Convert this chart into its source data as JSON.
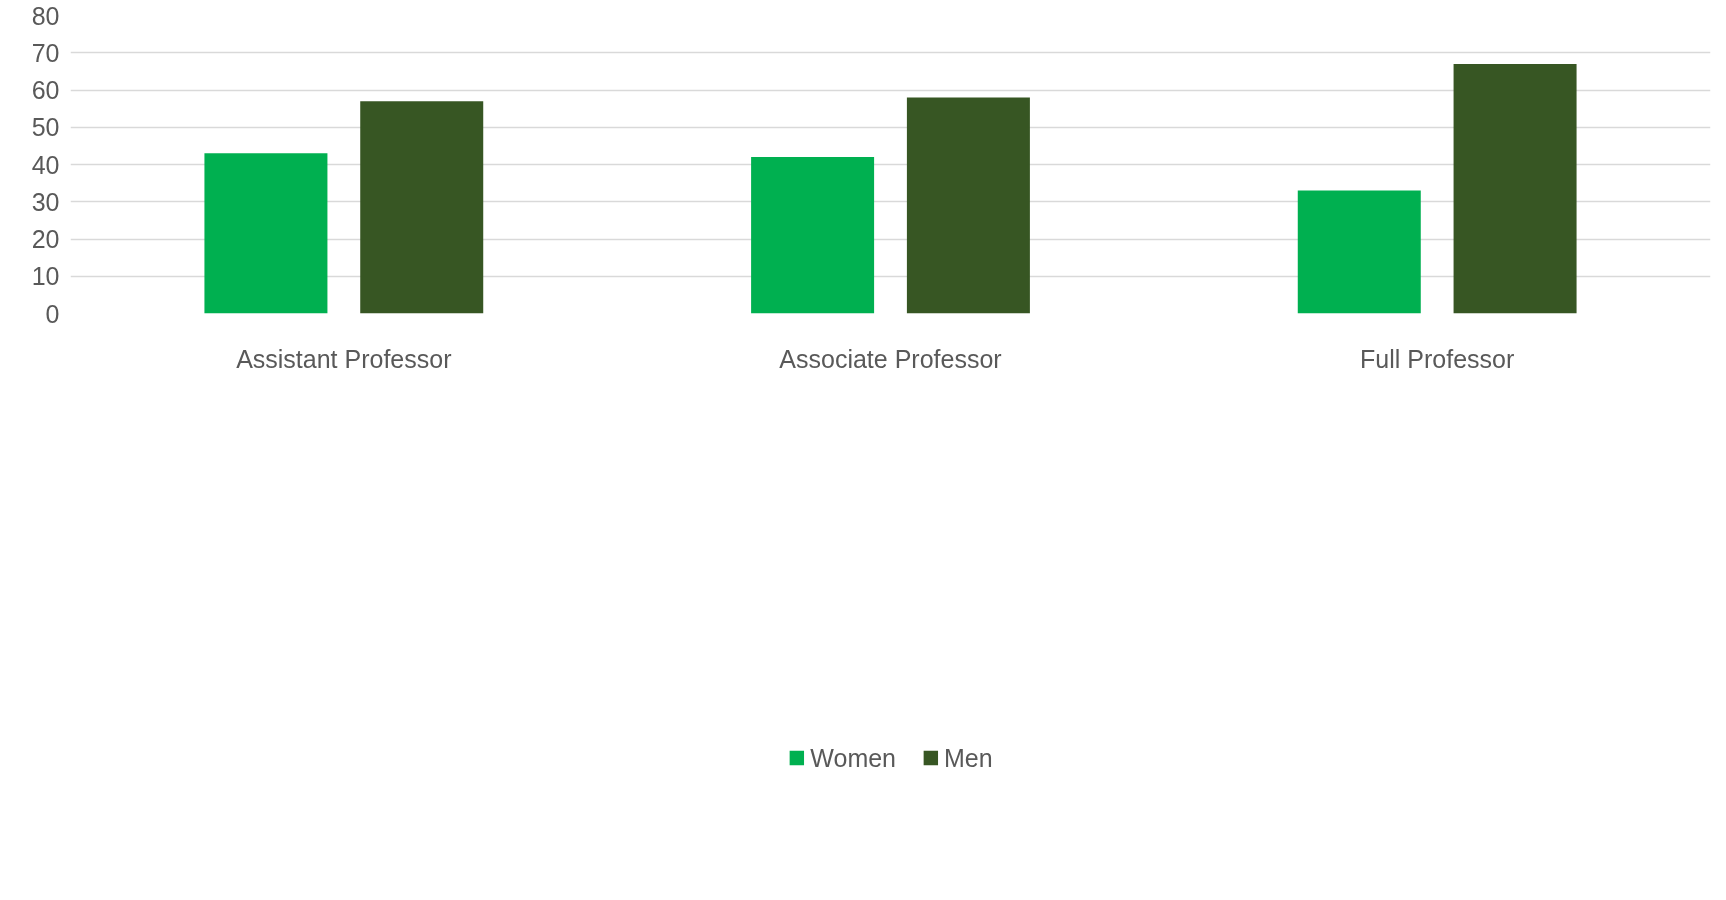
{
  "chart_data": {
    "type": "bar",
    "categories": [
      "Assistant Professor",
      "Associate Professor",
      "Full Professor"
    ],
    "series": [
      {
        "name": "Women",
        "color": "#00b050",
        "values": [
          43,
          42,
          33
        ]
      },
      {
        "name": "Men",
        "color": "#375623",
        "values": [
          57,
          58,
          67
        ]
      }
    ],
    "ylim": [
      0,
      80
    ],
    "yticks": [
      0,
      10,
      20,
      30,
      40,
      50,
      60,
      70,
      80
    ],
    "grid": "y",
    "legend": "bottom"
  }
}
